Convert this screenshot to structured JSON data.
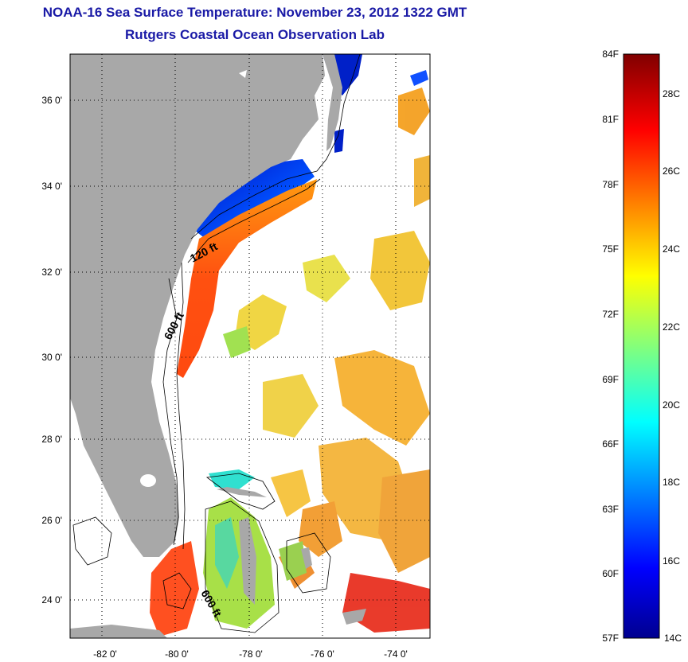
{
  "title": {
    "line1": "NOAA-16 Sea Surface Temperature:  November 23, 2012 1322 GMT",
    "line2": "Rutgers Coastal Ocean Observation Lab"
  },
  "map": {
    "lat_labels": [
      "36 0'",
      "34 0'",
      "32 0'",
      "30 0'",
      "28 0'",
      "26 0'",
      "24 0'"
    ],
    "lon_labels": [
      "-82 0'",
      "-80 0'",
      "-78 0'",
      "-76 0'",
      "-74 0'"
    ],
    "contour_labels": [
      "120 ft",
      "600 ft",
      "600 ft"
    ],
    "colors": {
      "land": "#a8a8a8",
      "ocean_nodata": "#ffffff",
      "gridline": "#000000"
    }
  },
  "colorbar": {
    "fahrenheit_labels": [
      "84F",
      "81F",
      "78F",
      "75F",
      "72F",
      "69F",
      "66F",
      "63F",
      "60F",
      "57F"
    ],
    "celsius_labels": [
      "28C",
      "26C",
      "24C",
      "22C",
      "20C",
      "18C",
      "16C",
      "14C"
    ],
    "colors": [
      "#00008f",
      "#0000ff",
      "#00ffff",
      "#ffff00",
      "#ff0000",
      "#800000"
    ]
  }
}
